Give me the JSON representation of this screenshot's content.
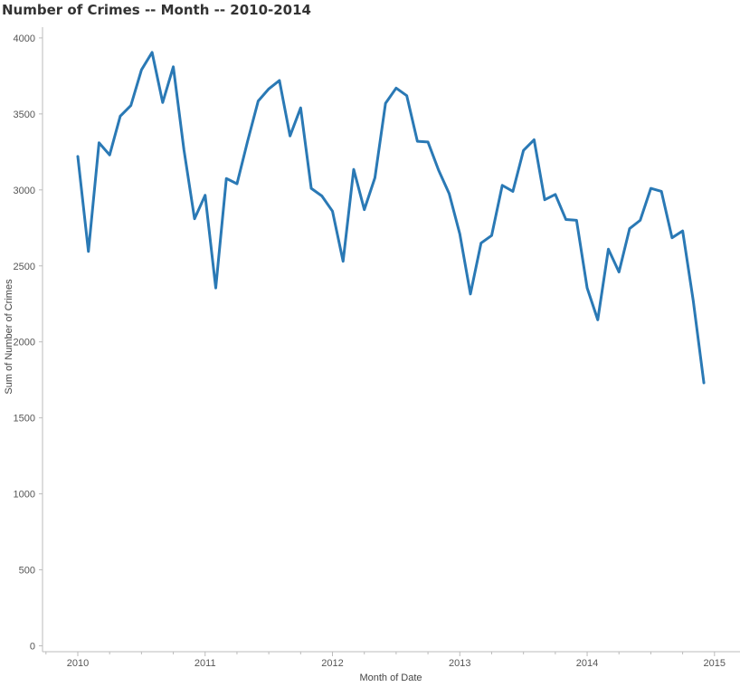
{
  "chart_data": {
    "type": "line",
    "title": "Number of Crimes -- Month -- 2010-2014",
    "xlabel": "Month of Date",
    "ylabel": "Sum of Number of Crimes",
    "x_tick_labels": [
      "2010",
      "2011",
      "2012",
      "2013",
      "2014",
      "2015"
    ],
    "y_tick_labels": [
      "0",
      "500",
      "1000",
      "1500",
      "2000",
      "2500",
      "3000",
      "3500",
      "4000"
    ],
    "ylim": [
      0,
      4000
    ],
    "xlim": [
      "2010-01",
      "2015-01"
    ],
    "grid": false,
    "colors": {
      "line": "#2A79B5",
      "axis": "#BBBBBB"
    },
    "series": [
      {
        "x": [
          "2010-01",
          "2010-02",
          "2010-03",
          "2010-04",
          "2010-05",
          "2010-06",
          "2010-07",
          "2010-08",
          "2010-09",
          "2010-10",
          "2010-11",
          "2010-12",
          "2011-01",
          "2011-02",
          "2011-03",
          "2011-04",
          "2011-05",
          "2011-06",
          "2011-07",
          "2011-08",
          "2011-09",
          "2011-10",
          "2011-11",
          "2011-12",
          "2012-01",
          "2012-02",
          "2012-03",
          "2012-04",
          "2012-05",
          "2012-06",
          "2012-07",
          "2012-08",
          "2012-09",
          "2012-10",
          "2012-11",
          "2012-12",
          "2013-01",
          "2013-02",
          "2013-03",
          "2013-04",
          "2013-05",
          "2013-06",
          "2013-07",
          "2013-08",
          "2013-09",
          "2013-10",
          "2013-11",
          "2013-12",
          "2014-01",
          "2014-02",
          "2014-03",
          "2014-04",
          "2014-05",
          "2014-06",
          "2014-07",
          "2014-08",
          "2014-09",
          "2014-10",
          "2014-11",
          "2014-12"
        ],
        "values": [
          3220,
          2595,
          3310,
          3230,
          3485,
          3555,
          3790,
          3905,
          3575,
          3810,
          3265,
          2810,
          2965,
          2355,
          3075,
          3040,
          3320,
          3585,
          3665,
          3720,
          3355,
          3540,
          3010,
          2960,
          2860,
          2530,
          3135,
          2870,
          3080,
          3570,
          3670,
          3620,
          3320,
          3315,
          3130,
          2975,
          2710,
          2315,
          2650,
          2700,
          3030,
          2990,
          3260,
          3330,
          2935,
          2970,
          2805,
          2800,
          2355,
          2145,
          2610,
          2460,
          2745,
          2800,
          3010,
          2990,
          2685,
          2730,
          2270,
          1730
        ]
      }
    ]
  }
}
